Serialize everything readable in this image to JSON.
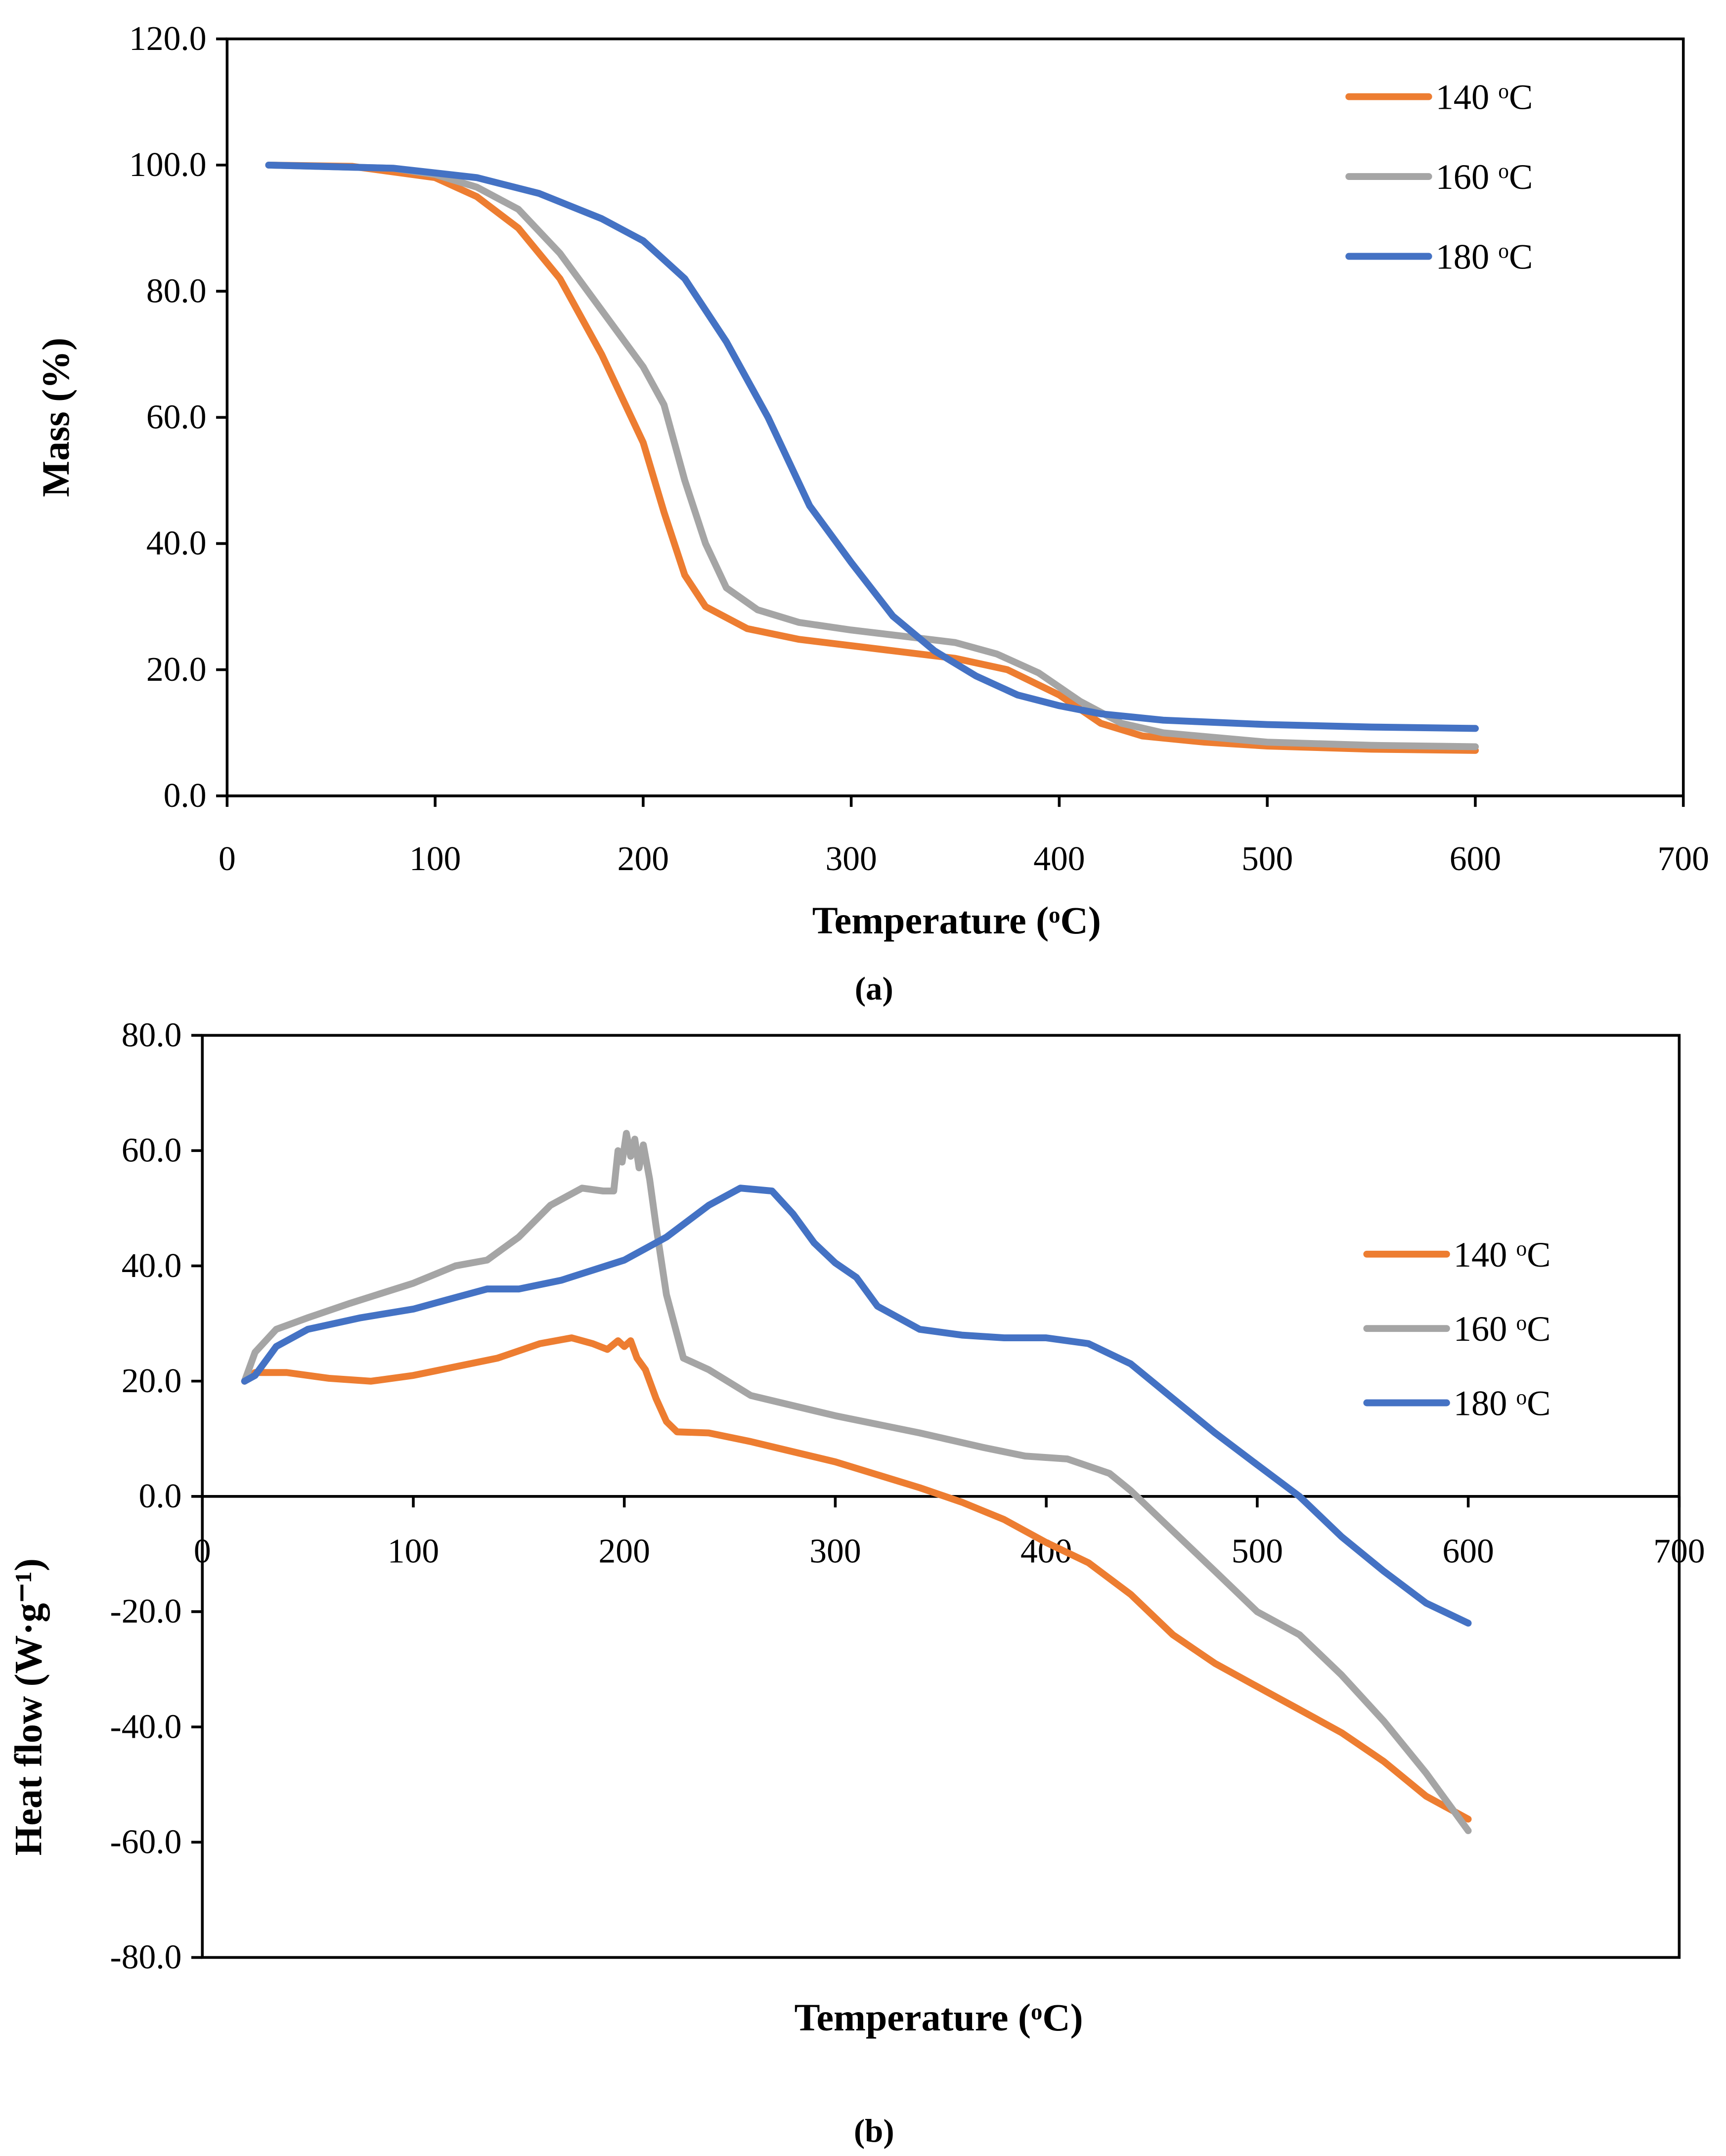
{
  "chart_data": [
    {
      "type": "line",
      "panel_label": "(a)",
      "xlabel": "Temperature (oC)",
      "ylabel": "Mass (%)",
      "xlim": [
        0,
        700
      ],
      "ylim": [
        0,
        120
      ],
      "xticks": [
        "0",
        "100",
        "200",
        "300",
        "400",
        "500",
        "600",
        "700"
      ],
      "yticks": [
        "0.0",
        "20.0",
        "40.0",
        "60.0",
        "80.0",
        "100.0",
        "120.0"
      ],
      "grid": false,
      "legend": "top-right",
      "series": [
        {
          "name": "140 oC",
          "color": "#ED7D31",
          "x": [
            20,
            60,
            100,
            120,
            140,
            160,
            180,
            200,
            210,
            220,
            230,
            250,
            275,
            300,
            325,
            350,
            375,
            400,
            420,
            440,
            470,
            500,
            550,
            600
          ],
          "y": [
            100,
            99.8,
            98,
            95,
            90,
            82,
            70,
            56,
            45,
            35,
            30,
            26.5,
            24.8,
            23.8,
            22.8,
            21.8,
            20,
            16,
            11.5,
            9.5,
            8.5,
            7.9,
            7.4,
            7.2
          ]
        },
        {
          "name": "160 oC",
          "color": "#A5A5A5",
          "x": [
            20,
            80,
            100,
            120,
            140,
            160,
            180,
            200,
            210,
            220,
            230,
            240,
            255,
            275,
            300,
            325,
            350,
            370,
            390,
            410,
            430,
            450,
            500,
            550,
            600
          ],
          "y": [
            100,
            99.5,
            98.5,
            96.5,
            93,
            86,
            77,
            68,
            62,
            50,
            40,
            33,
            29.5,
            27.5,
            26.3,
            25.3,
            24.3,
            22.5,
            19.5,
            15,
            11.5,
            10,
            8.5,
            8,
            7.8
          ]
        },
        {
          "name": "180 oC",
          "color": "#4472C4",
          "x": [
            20,
            80,
            120,
            150,
            180,
            200,
            220,
            240,
            260,
            280,
            300,
            320,
            340,
            360,
            380,
            400,
            420,
            450,
            500,
            550,
            600
          ],
          "y": [
            100,
            99.5,
            98,
            95.5,
            91.5,
            88,
            82,
            72,
            60,
            46,
            37,
            28.5,
            23,
            19,
            16,
            14.3,
            13,
            12,
            11.3,
            10.9,
            10.7
          ]
        }
      ]
    },
    {
      "type": "line",
      "panel_label": "(b)",
      "xlabel": "Temperature (oC)",
      "ylabel": "Heat flow (W·g⁻¹)",
      "xlim": [
        0,
        700
      ],
      "ylim": [
        -80,
        80
      ],
      "xticks": [
        "0",
        "100",
        "200",
        "300",
        "400",
        "500",
        "600",
        "700"
      ],
      "yticks": [
        "-80.0",
        "-60.0",
        "-40.0",
        "-20.0",
        "0.0",
        "20.0",
        "40.0",
        "60.0",
        "80.0"
      ],
      "grid": false,
      "legend": "right",
      "series": [
        {
          "name": "140 oC",
          "color": "#ED7D31",
          "x": [
            20,
            25,
            40,
            60,
            80,
            100,
            120,
            140,
            160,
            175,
            185,
            192,
            197,
            200,
            203,
            206,
            210,
            215,
            220,
            225,
            240,
            260,
            300,
            340,
            360,
            380,
            400,
            420,
            440,
            460,
            480,
            500,
            520,
            540,
            560,
            580,
            600
          ],
          "y": [
            20,
            21.5,
            21.5,
            20.5,
            20,
            21,
            22.5,
            24,
            26.5,
            27.5,
            26.5,
            25.5,
            27,
            26,
            27,
            24,
            22,
            17,
            13,
            11.2,
            11,
            9.5,
            6,
            1.5,
            -1,
            -4,
            -8,
            -11.5,
            -17,
            -24,
            -29,
            -33,
            -37,
            -41,
            -46,
            -52,
            -56
          ]
        },
        {
          "name": "160 oC",
          "color": "#A5A5A5",
          "x": [
            20,
            25,
            35,
            50,
            70,
            100,
            120,
            135,
            150,
            165,
            180,
            190,
            195,
            197,
            199,
            201,
            203,
            205,
            207,
            209,
            212,
            215,
            220,
            228,
            240,
            260,
            300,
            340,
            370,
            390,
            410,
            430,
            440,
            460,
            480,
            500,
            520,
            540,
            560,
            580,
            600
          ],
          "y": [
            20,
            25,
            29,
            31,
            33.5,
            37,
            40,
            41,
            45,
            50.5,
            53.5,
            53,
            53,
            60,
            58,
            63,
            59,
            62,
            57,
            61,
            55,
            47,
            35,
            24,
            22,
            17.5,
            14,
            11,
            8.5,
            7,
            6.5,
            4,
            1,
            -6,
            -13,
            -20,
            -24,
            -31,
            -39,
            -48,
            -58
          ]
        },
        {
          "name": "180 oC",
          "color": "#4472C4",
          "x": [
            20,
            25,
            35,
            50,
            75,
            100,
            120,
            135,
            150,
            170,
            200,
            220,
            240,
            255,
            270,
            280,
            290,
            300,
            310,
            320,
            340,
            360,
            380,
            400,
            420,
            440,
            460,
            480,
            500,
            520,
            540,
            560,
            580,
            600
          ],
          "y": [
            20,
            21,
            26,
            29,
            31,
            32.5,
            34.5,
            36,
            36,
            37.5,
            41,
            45,
            50.5,
            53.5,
            53,
            49,
            44,
            40.5,
            38,
            33,
            29,
            28,
            27.5,
            27.5,
            26.5,
            23,
            17,
            11,
            5.5,
            0,
            -7,
            -13,
            -18.5,
            -22
          ]
        }
      ]
    }
  ]
}
